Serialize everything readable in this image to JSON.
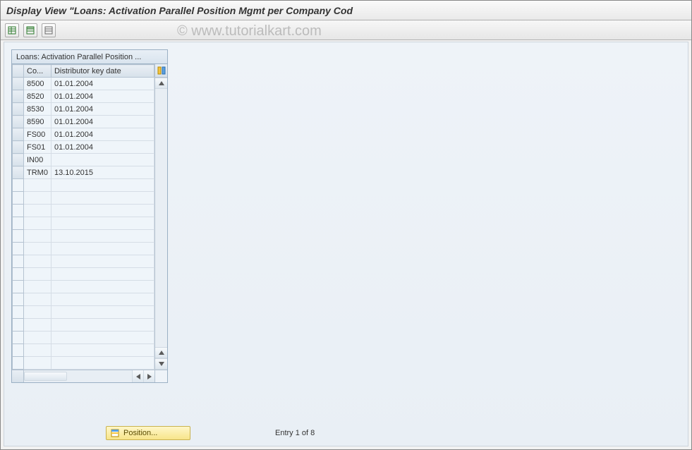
{
  "title": "Display View \"Loans: Activation Parallel Position Mgmt per Company Cod",
  "watermark": "© www.tutorialkart.com",
  "toolbar": {
    "btn1": "display-change-toggle",
    "btn2": "select-all",
    "btn3": "deselect-all"
  },
  "panel": {
    "title": "Loans: Activation Parallel Position ...",
    "columns": {
      "sel": "",
      "co": "Co...",
      "dist": "Distributor key date",
      "settings": ""
    },
    "rows": [
      {
        "co": "8500",
        "dist": "01.01.2004"
      },
      {
        "co": "8520",
        "dist": "01.01.2004"
      },
      {
        "co": "8530",
        "dist": "01.01.2004"
      },
      {
        "co": "8590",
        "dist": "01.01.2004"
      },
      {
        "co": "FS00",
        "dist": "01.01.2004"
      },
      {
        "co": "FS01",
        "dist": "01.01.2004"
      },
      {
        "co": "IN00",
        "dist": ""
      },
      {
        "co": "TRM0",
        "dist": "13.10.2015"
      }
    ],
    "empty_rows": 15,
    "colors": {
      "header_bg_top": "#e9eff5",
      "header_bg_bottom": "#d7e1ea",
      "cell_bg": "#eff5fa",
      "border": "#b5c3d1"
    }
  },
  "footer": {
    "position_label": "Position...",
    "entry_text": "Entry 1 of 8"
  }
}
